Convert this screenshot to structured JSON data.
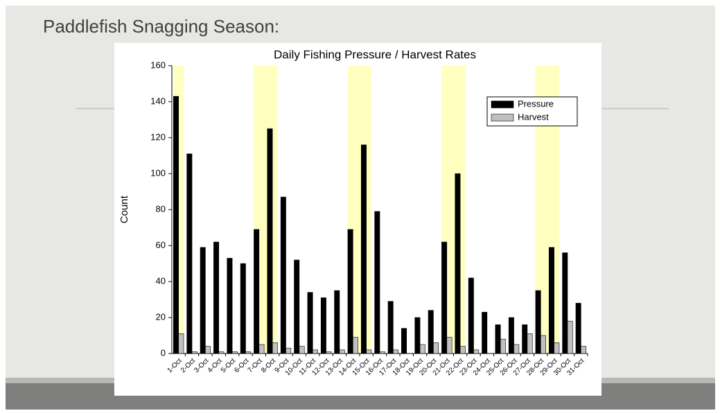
{
  "slide": {
    "title": "Paddlefish Snagging Season:"
  },
  "chart_data": {
    "type": "bar",
    "title": "Daily Fishing Pressure / Harvest Rates",
    "y_label": "Count",
    "categories": [
      "1-Oct",
      "2-Oct",
      "3-Oct",
      "4-Oct",
      "5-Oct",
      "6-Oct",
      "7-Oct",
      "8-Oct",
      "9-Oct",
      "10-Oct",
      "11-Oct",
      "12-Oct",
      "13-Oct",
      "14-Oct",
      "15-Oct",
      "16-Oct",
      "17-Oct",
      "18-Oct",
      "19-Oct",
      "20-Oct",
      "21-Oct",
      "22-Oct",
      "23-Oct",
      "24-Oct",
      "25-Oct",
      "26-Oct",
      "27-Oct",
      "28-Oct",
      "29-Oct",
      "30-Oct",
      "31-Oct"
    ],
    "series": [
      {
        "name": "Pressure",
        "color": "#000000",
        "values": [
          143,
          111,
          59,
          62,
          53,
          50,
          69,
          125,
          87,
          52,
          34,
          31,
          35,
          69,
          116,
          79,
          29,
          14,
          20,
          24,
          62,
          100,
          42,
          23,
          16,
          20,
          16,
          35,
          59,
          56,
          28
        ]
      },
      {
        "name": "Harvest",
        "color": "#c0c0c0",
        "values": [
          11,
          1,
          4,
          1,
          1,
          1,
          5,
          6,
          3,
          4,
          2,
          1,
          2,
          9,
          2,
          1,
          2,
          0,
          5,
          6,
          9,
          4,
          2,
          0,
          8,
          5,
          11,
          10,
          6,
          18,
          4
        ]
      }
    ],
    "highlight_bands": [
      [
        "1-Oct",
        "1-Oct"
      ],
      [
        "7-Oct",
        "8-Oct"
      ],
      [
        "14-Oct",
        "15-Oct"
      ],
      [
        "21-Oct",
        "22-Oct"
      ],
      [
        "28-Oct",
        "29-Oct"
      ]
    ],
    "highlight_color": "#ffffc0",
    "ylim": [
      0,
      160
    ],
    "yticks": [
      0,
      20,
      40,
      60,
      80,
      100,
      120,
      140,
      160
    ],
    "legend": "top-right"
  }
}
